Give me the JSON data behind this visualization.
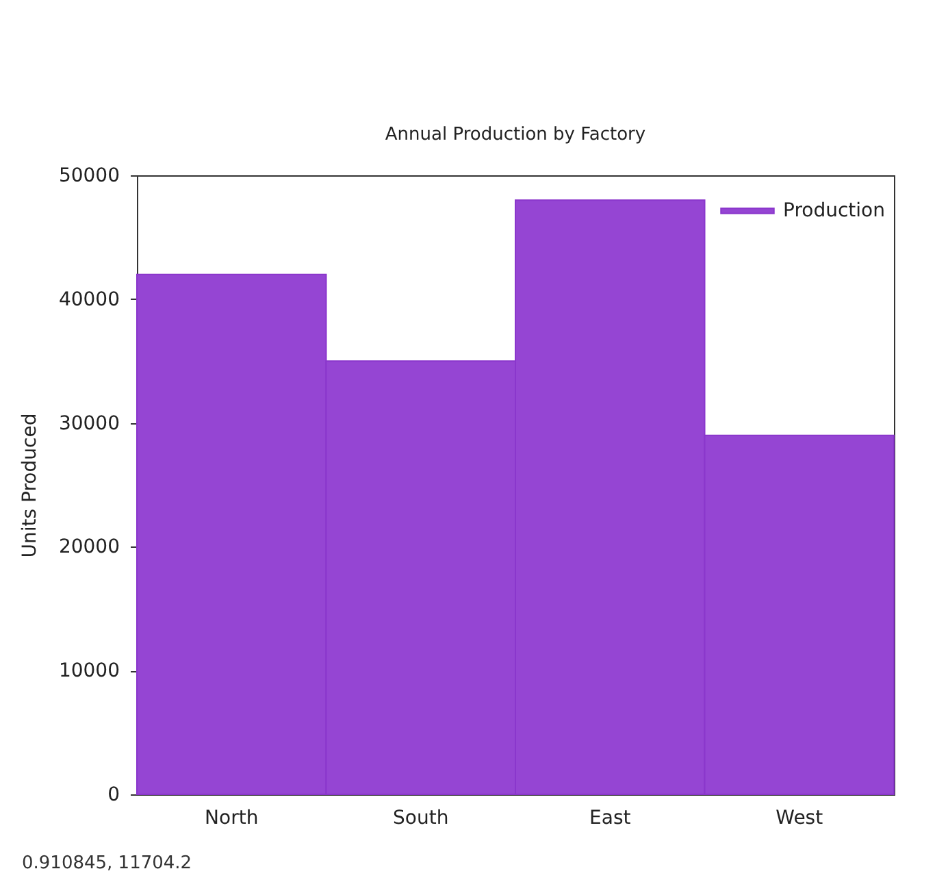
{
  "chart_data": {
    "type": "bar",
    "title": "Annual Production by Factory",
    "ylabel": "Units Produced",
    "categories": [
      "North",
      "South",
      "East",
      "West"
    ],
    "series": [
      {
        "name": "Production",
        "color": "#9545d3",
        "values": [
          42000,
          35000,
          48000,
          29000
        ]
      }
    ],
    "ylim": [
      0,
      50000
    ],
    "yticks": [
      0,
      10000,
      20000,
      30000,
      40000,
      50000
    ],
    "legend": "top right",
    "annotations": [
      "0.910845,  11704.2"
    ]
  }
}
